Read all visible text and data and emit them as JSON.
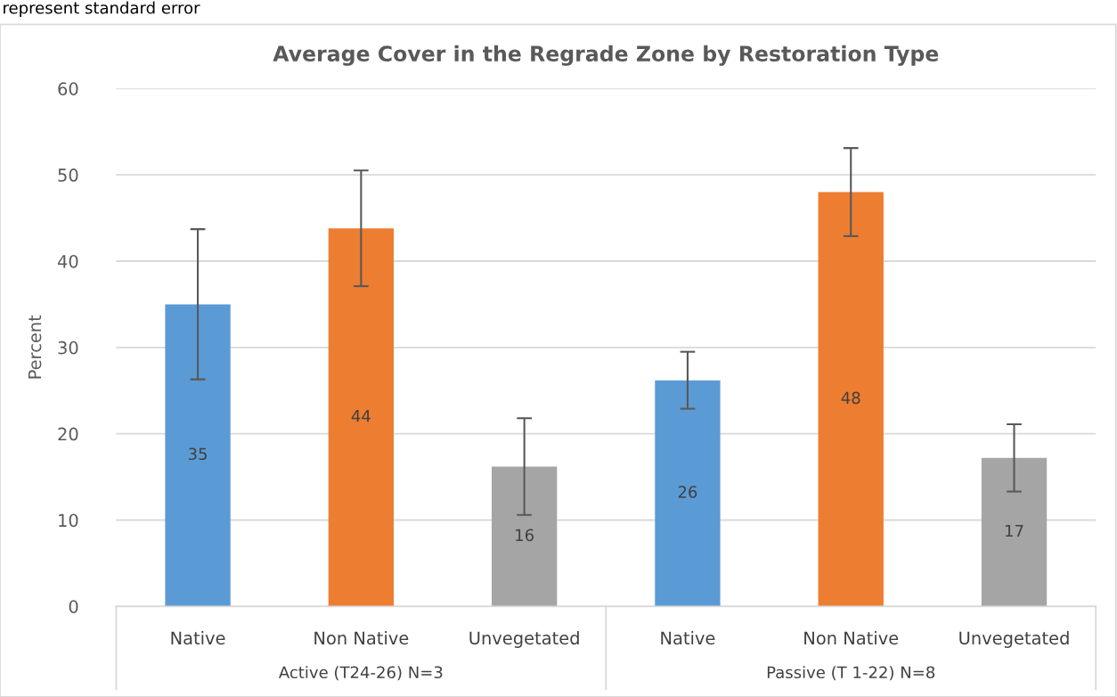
{
  "chart_data": {
    "type": "bar",
    "title": "Average Cover in the Regrade Zone by Restoration Type",
    "ylabel": "Percent",
    "categories": [
      "Native",
      "Non Native",
      "Unvegetated",
      "Native",
      "Non Native",
      "Unvegetated"
    ],
    "values": [
      35.0,
      43.8,
      16.2,
      26.2,
      48.0,
      17.2
    ],
    "errors": [
      8.7,
      6.7,
      5.6,
      3.3,
      5.1,
      3.9
    ],
    "value_labels": [
      "35",
      "44",
      "16",
      "26",
      "48",
      "17"
    ],
    "colors": [
      "#5b9bd5",
      "#ed7d31",
      "#a5a5a5",
      "#5b9bd5",
      "#ed7d31",
      "#a5a5a5"
    ],
    "ylim": [
      0,
      60
    ],
    "yticks": [
      0,
      10,
      20,
      30,
      40,
      50,
      60
    ],
    "grid": "y",
    "annotations": [
      "Active (T24-26) N=3",
      "Passive (T 1-22) N=8",
      "represent standard error"
    ]
  }
}
